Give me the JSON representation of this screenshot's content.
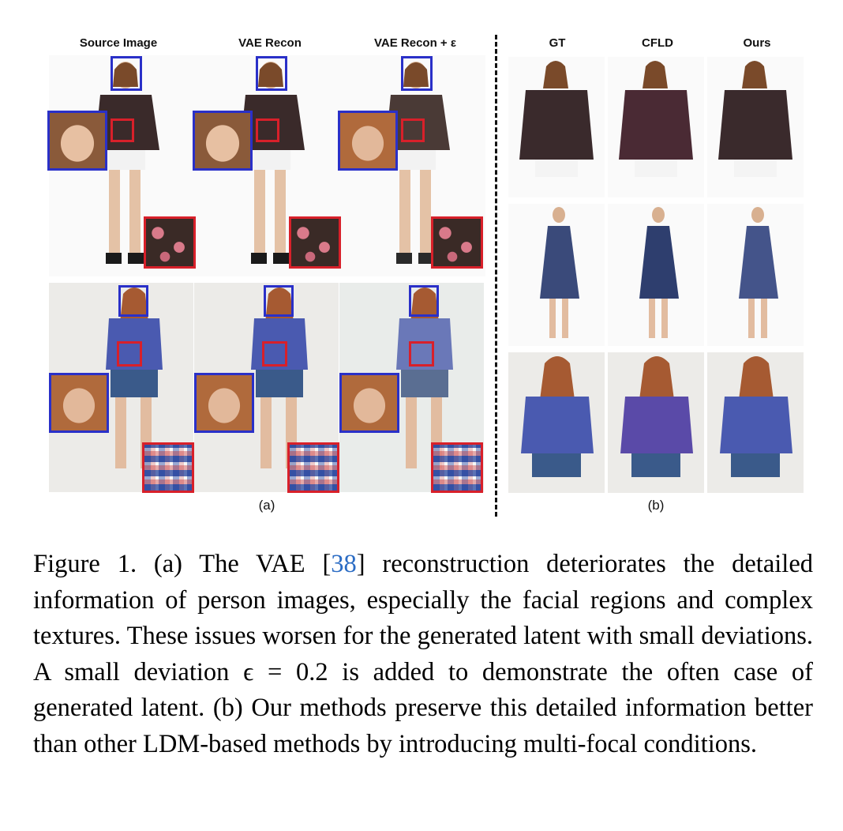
{
  "panel_a": {
    "headers": [
      "Source Image",
      "VAE Recon",
      "VAE Recon + ε"
    ],
    "label": "(a)"
  },
  "panel_b": {
    "headers": [
      "GT",
      "CFLD",
      "Ours"
    ],
    "label": "(b)"
  },
  "caption": {
    "part1": "Figure 1.  (a) The VAE [",
    "cite": "38",
    "part2": "] reconstruction deteriorates the detailed information of person images, especially the facial regions and complex textures. These issues worsen for the generated latent with small deviations. A small deviation ϵ = 0.2 is added to demonstrate the often case of generated latent. (b) Our methods preserve this detailed information better than other LDM-based methods by introducing multi-focal conditions."
  },
  "colors": {
    "zoom_face_border": "#2a30c8",
    "zoom_texture_border": "#d8202a",
    "citation": "#2b6cc4"
  }
}
